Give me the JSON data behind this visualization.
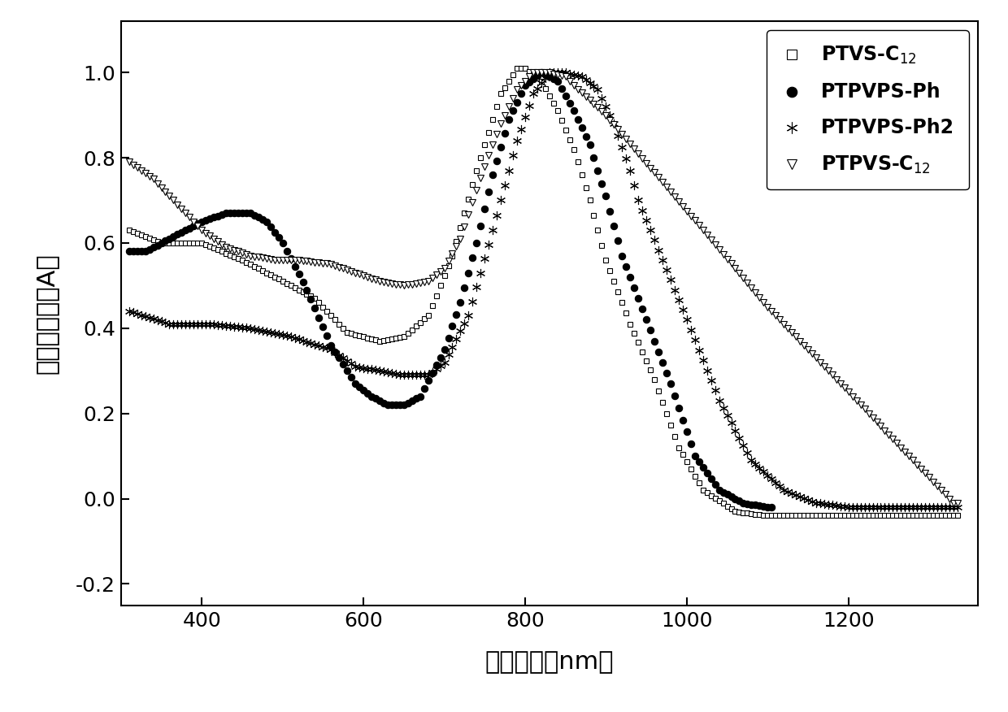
{
  "title": "",
  "xlabel": "波　长　（nm）",
  "ylabel": "吸　光　度（A）",
  "xlim": [
    300,
    1360
  ],
  "ylim": [
    -0.25,
    1.12
  ],
  "yticks": [
    -0.2,
    0.0,
    0.2,
    0.4,
    0.6,
    0.8,
    1.0
  ],
  "xticks": [
    400,
    600,
    800,
    1000,
    1200
  ],
  "legend_labels": [
    "PTVS-C$_{12}$",
    "PTPVPS-Ph",
    "PTPVPS-Ph2",
    "PTPVS-C$_{12}$"
  ]
}
